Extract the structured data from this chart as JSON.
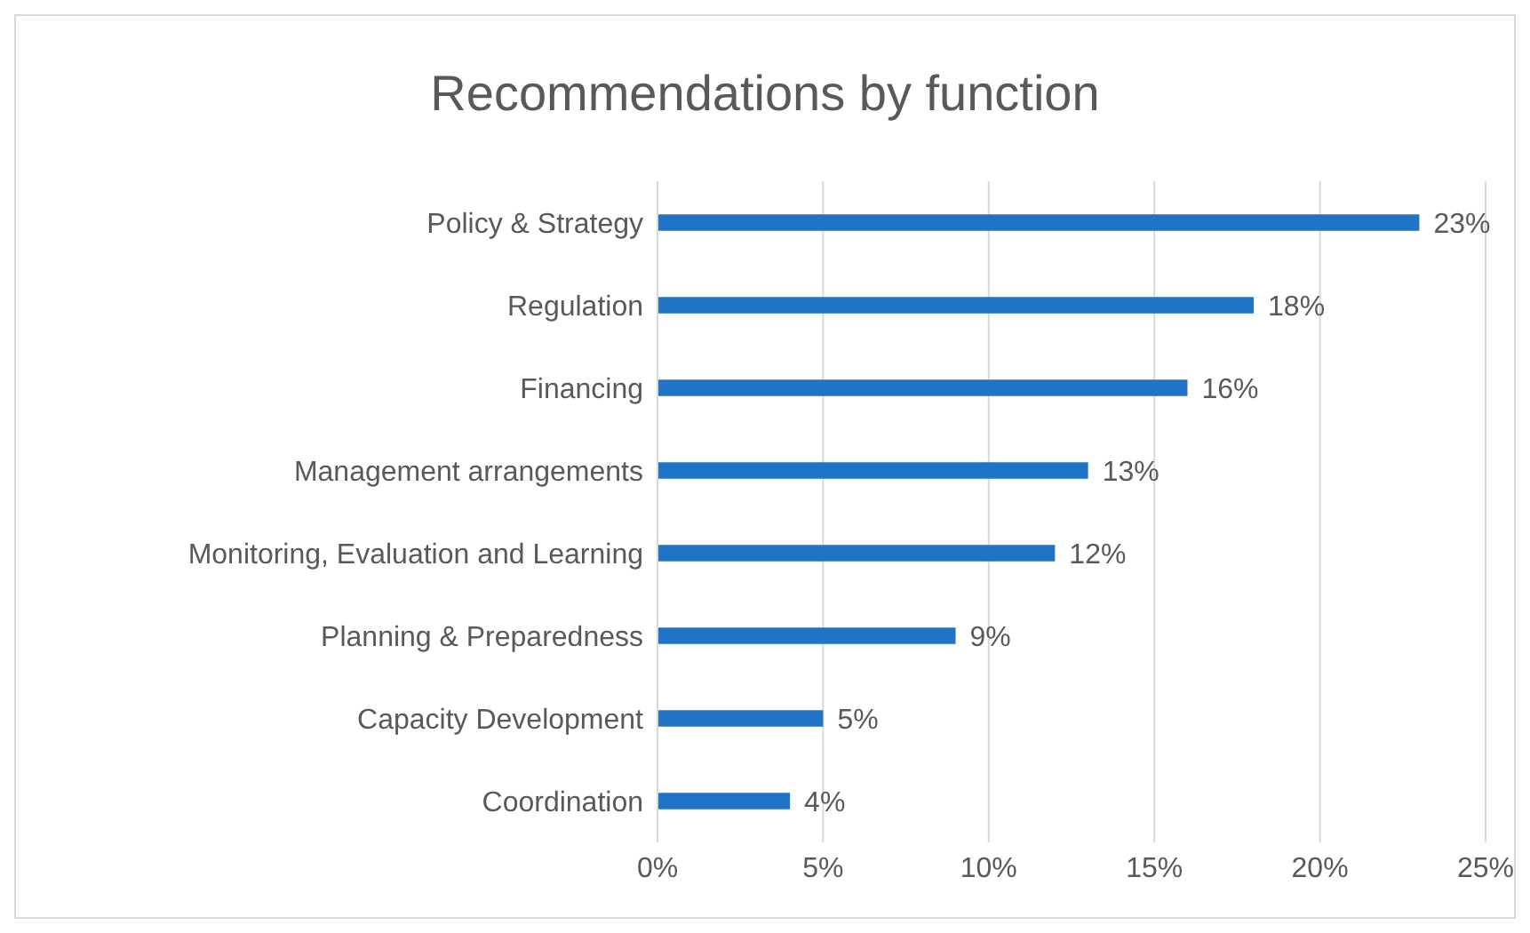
{
  "chart_data": {
    "type": "bar",
    "orientation": "horizontal",
    "title": "Recommendations by function",
    "categories": [
      "Policy & Strategy",
      "Regulation",
      "Financing",
      "Management arrangements",
      "Monitoring, Evaluation and Learning",
      "Planning & Preparedness",
      "Capacity Development",
      "Coordination"
    ],
    "values": [
      23,
      18,
      16,
      13,
      12,
      9,
      5,
      4
    ],
    "value_labels": [
      "23%",
      "18%",
      "16%",
      "13%",
      "12%",
      "9%",
      "5%",
      "4%"
    ],
    "color": "#1f74c8",
    "xlim": [
      0,
      25
    ],
    "xticks": [
      {
        "value": 0,
        "label": "0%"
      },
      {
        "value": 5,
        "label": "5%"
      },
      {
        "value": 10,
        "label": "10%"
      },
      {
        "value": 15,
        "label": "15%"
      },
      {
        "value": 20,
        "label": "20%"
      },
      {
        "value": 25,
        "label": "25%"
      }
    ],
    "grid": "x"
  }
}
